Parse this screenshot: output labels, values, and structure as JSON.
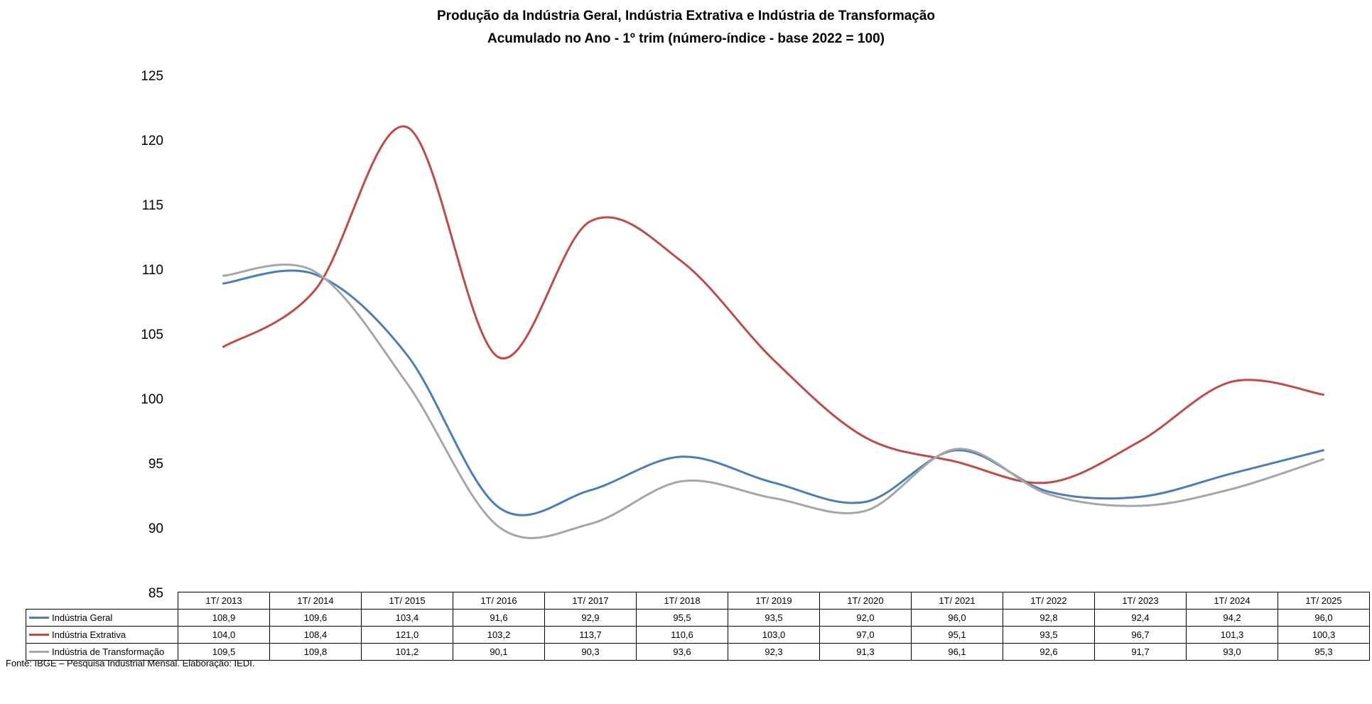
{
  "title": "Produção da Indústria Geral, Indústria Extrativa e Indústria de Transformação",
  "subtitle": "Acumulado no Ano - 1º trim (número-índice - base 2022 = 100)",
  "source": "Fonte: IBGE – Pesquisa Industrial Mensal. Elaboração: IEDI.",
  "chart_data": {
    "type": "line",
    "title": "Produção da Indústria Geral, Indústria Extrativa e Indústria de Transformação",
    "subtitle": "Acumulado no Ano - 1º trim (número-índice - base 2022 = 100)",
    "categories": [
      "1T/ 2013",
      "1T/ 2014",
      "1T/ 2015",
      "1T/ 2016",
      "1T/ 2017",
      "1T/ 2018",
      "1T/ 2019",
      "1T/ 2020",
      "1T/ 2021",
      "1T/ 2022",
      "1T/ 2023",
      "1T/ 2024",
      "1T/ 2025"
    ],
    "ylim": [
      85,
      125
    ],
    "yticks": [
      85,
      90,
      95,
      100,
      105,
      110,
      115,
      120,
      125
    ],
    "grid": false,
    "legend": "data-table-below",
    "series": [
      {
        "name": "Indústria Geral",
        "color": "#4a7ebb",
        "values": [
          108.9,
          109.6,
          103.4,
          91.6,
          92.9,
          95.5,
          93.5,
          92.0,
          96.0,
          92.8,
          92.4,
          94.2,
          96.0
        ],
        "labels": [
          "108,9",
          "109,6",
          "103,4",
          "91,6",
          "92,9",
          "95,5",
          "93,5",
          "92,0",
          "96,0",
          "92,8",
          "92,4",
          "94,2",
          "96,0"
        ]
      },
      {
        "name": "Indústria Extrativa",
        "color": "#be4b48",
        "values": [
          104.0,
          108.4,
          121.0,
          103.2,
          113.7,
          110.6,
          103.0,
          97.0,
          95.1,
          93.5,
          96.7,
          101.3,
          100.3
        ],
        "labels": [
          "104,0",
          "108,4",
          "121,0",
          "103,2",
          "113,7",
          "110,6",
          "103,0",
          "97,0",
          "95,1",
          "93,5",
          "96,7",
          "101,3",
          "100,3"
        ]
      },
      {
        "name": "Indústria de Transformação",
        "color": "#a6a6a6",
        "values": [
          109.5,
          109.8,
          101.2,
          90.1,
          90.3,
          93.6,
          92.3,
          91.3,
          96.1,
          92.6,
          91.7,
          93.0,
          95.3
        ],
        "labels": [
          "109,5",
          "109,8",
          "101,2",
          "90,1",
          "90,3",
          "93,6",
          "92,3",
          "91,3",
          "96,1",
          "92,6",
          "91,7",
          "93,0",
          "95,3"
        ]
      }
    ]
  }
}
